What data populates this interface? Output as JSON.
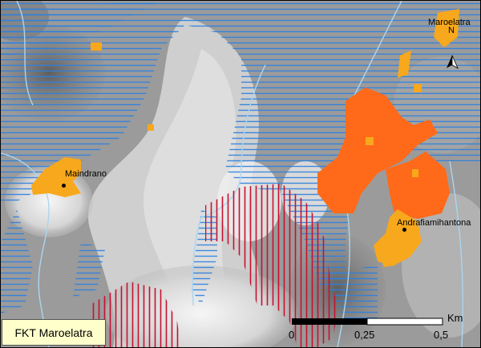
{
  "map": {
    "title": "FKT Maroelatra",
    "places": [
      {
        "name": "Maroelatra",
        "show_dot": false
      },
      {
        "name": "Maindrano",
        "show_dot": true
      },
      {
        "name": "Andrafiamihantona",
        "show_dot": true
      }
    ],
    "north_arrow": {
      "letter": "N"
    },
    "scale_bar": {
      "unit": "Km",
      "ticks": [
        "0",
        "0,25",
        "0,5"
      ]
    },
    "colors": {
      "settlement_orange": "#ff6a1a",
      "settlement_yellow": "#f7a81c",
      "blue_hatch": "#2b7fe0",
      "red_hatch": "#c8102e",
      "river": "#a9d6f0",
      "legend_bg": "#ffffcc"
    },
    "icons": [
      "north-arrow-icon",
      "place-dot-icon"
    ]
  }
}
